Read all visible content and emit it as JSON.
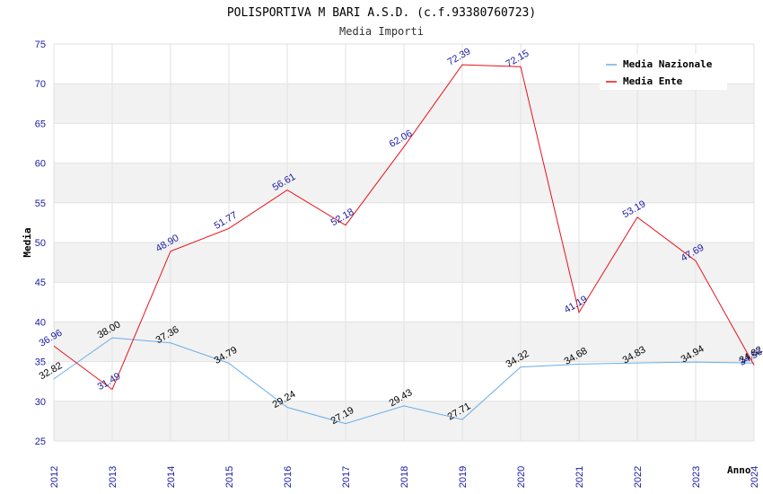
{
  "chart_data": {
    "type": "line",
    "title": "POLISPORTIVA M BARI A.S.D. (c.f.93380760723)",
    "subtitle": "Media Importi",
    "xlabel": "Anno",
    "ylabel": "Media",
    "ylim": [
      25,
      75
    ],
    "yticks": [
      25,
      30,
      35,
      40,
      45,
      50,
      55,
      60,
      65,
      70,
      75
    ],
    "categories": [
      "2012",
      "2013",
      "2014",
      "2015",
      "2016",
      "2017",
      "2018",
      "2019",
      "2020",
      "2021",
      "2022",
      "2023",
      "2024"
    ],
    "grid": true,
    "legend_position": "top-right",
    "series": [
      {
        "name": "Media Nazionale",
        "color": "#6aaee8",
        "label_color": "#000000",
        "values": [
          32.82,
          38.0,
          37.36,
          34.79,
          29.24,
          27.19,
          29.43,
          27.71,
          34.32,
          34.68,
          34.83,
          34.94,
          34.82
        ],
        "labels": [
          "32.82",
          "38.00",
          "37.36",
          "34.79",
          "29.24",
          "27.19",
          "29.43",
          "27.71",
          "34.32",
          "34.68",
          "34.83",
          "34.94",
          "34.82"
        ]
      },
      {
        "name": "Media Ente",
        "color": "#e8101a",
        "label_color": "#1a1aa6",
        "values": [
          36.96,
          31.49,
          48.9,
          51.77,
          56.61,
          52.18,
          62.06,
          72.39,
          72.15,
          41.19,
          53.19,
          47.69,
          34.56
        ],
        "labels": [
          "36.96",
          "31.49",
          "48.90",
          "51.77",
          "56.61",
          "52.18",
          "62.06",
          "72.39",
          "72.15",
          "41.19",
          "53.19",
          "47.69",
          "34.56"
        ]
      }
    ]
  }
}
